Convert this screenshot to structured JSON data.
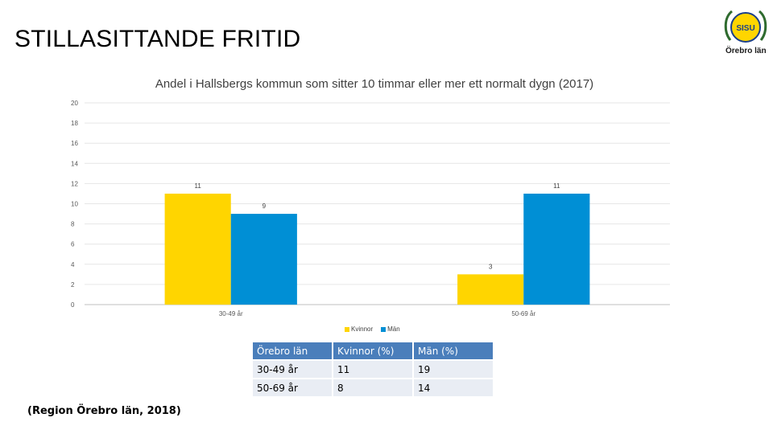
{
  "slide": {
    "title": "STILLASITTANDE FRITID",
    "logo_text": "Örebro län",
    "logo_emblem_text": "SISU",
    "source": "(Region Örebro län, 2018)"
  },
  "chart_data": {
    "type": "bar",
    "title": "Andel i Hallsbergs kommun som sitter 10 timmar eller mer ett normalt dygn (2017)",
    "categories": [
      "30-49 år",
      "50-69 år"
    ],
    "series": [
      {
        "name": "Kvinnor",
        "values": [
          11,
          3
        ],
        "color": "#ffd500"
      },
      {
        "name": "Män",
        "values": [
          9,
          11
        ],
        "color": "#008fd5"
      }
    ],
    "ylim": [
      0,
      20
    ],
    "yticks": [
      0,
      2,
      4,
      6,
      8,
      10,
      12,
      14,
      16,
      18,
      20
    ],
    "grid": true,
    "legend_position": "bottom",
    "data_labels": true
  },
  "table": {
    "header": [
      "Örebro län",
      "Kvinnor (%)",
      "Män (%)"
    ],
    "rows": [
      [
        "30-49 år",
        "11",
        "19"
      ],
      [
        "50-69 år",
        "8",
        "14"
      ]
    ]
  }
}
